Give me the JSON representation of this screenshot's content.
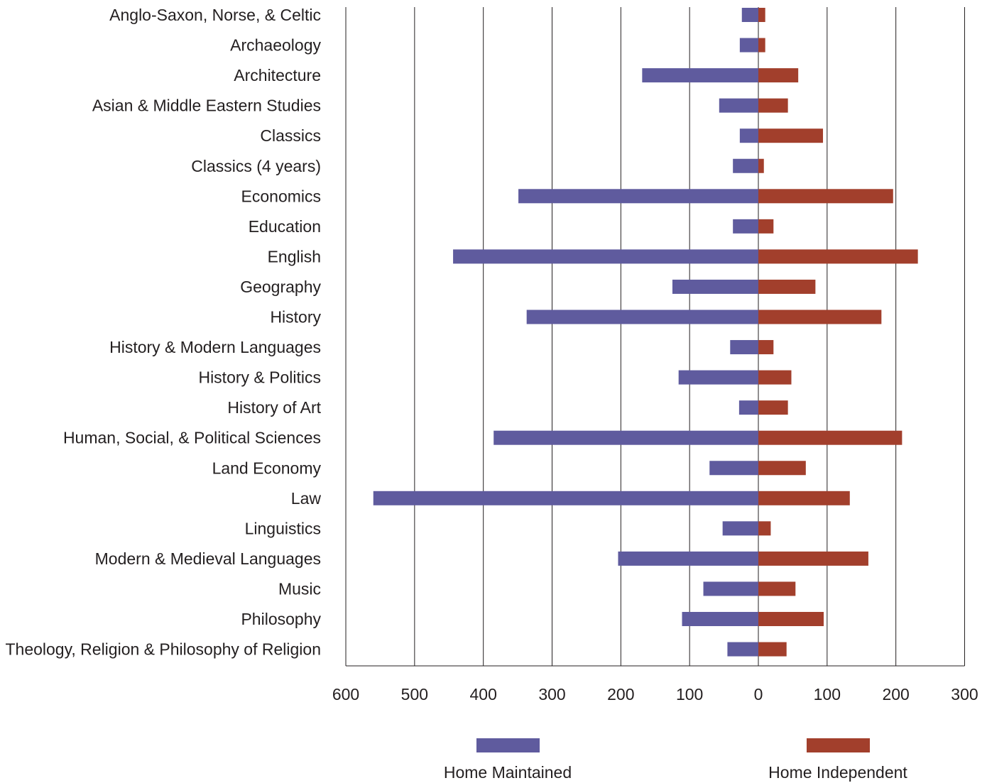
{
  "chart_data": {
    "type": "bar",
    "orientation": "horizontal-diverging",
    "categories": [
      "Anglo-Saxon, Norse, & Celtic",
      "Archaeology",
      "Architecture",
      "Asian & Middle Eastern Studies",
      "Classics",
      "Classics (4 years)",
      "Economics",
      "Education",
      "English",
      "Geography",
      "History",
      "History & Modern Languages",
      "History & Politics",
      "History of Art",
      "Human, Social, & Political Sciences",
      "Land Economy",
      "Law",
      "Linguistics",
      "Modern & Medieval Languages",
      "Music",
      "Philosophy",
      "Theology, Religion & Philosophy of Religion"
    ],
    "series": [
      {
        "name": "Home Maintained",
        "color": "#5f5b9e",
        "direction": "left",
        "values": [
          24,
          27,
          169,
          57,
          27,
          37,
          349,
          37,
          444,
          125,
          337,
          41,
          116,
          28,
          385,
          71,
          560,
          52,
          204,
          80,
          111,
          45
        ]
      },
      {
        "name": "Home Independent",
        "color": "#a23f2c",
        "direction": "right",
        "values": [
          10,
          10,
          58,
          43,
          94,
          8,
          196,
          22,
          232,
          83,
          179,
          22,
          48,
          43,
          209,
          69,
          133,
          18,
          160,
          54,
          95,
          41
        ]
      }
    ],
    "xticks": [
      {
        "value": -600,
        "label": "600"
      },
      {
        "value": -500,
        "label": "500"
      },
      {
        "value": -400,
        "label": "400"
      },
      {
        "value": -300,
        "label": "300"
      },
      {
        "value": -200,
        "label": "200"
      },
      {
        "value": -100,
        "label": "100"
      },
      {
        "value": 0,
        "label": "0"
      },
      {
        "value": 100,
        "label": "100"
      },
      {
        "value": 200,
        "label": "200"
      },
      {
        "value": 300,
        "label": "300"
      }
    ],
    "xlim": [
      -600,
      300
    ],
    "grid": true,
    "legend_placement": "bottom",
    "title": "",
    "xlabel": "",
    "ylabel": ""
  }
}
